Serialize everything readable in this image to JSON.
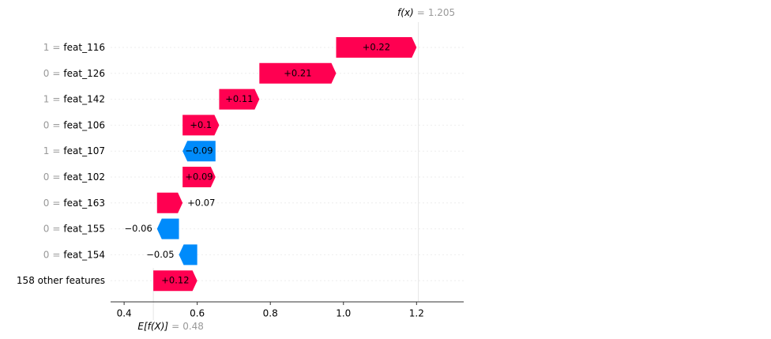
{
  "chart_data": {
    "type": "waterfall",
    "categories": [
      "feat_116",
      "feat_126",
      "feat_142",
      "feat_106",
      "feat_107",
      "feat_102",
      "feat_163",
      "feat_155",
      "feat_154",
      "158 other features"
    ],
    "feature_values": [
      "1",
      "0",
      "1",
      "0",
      "1",
      "0",
      "0",
      "0",
      "0",
      null
    ],
    "eq": "=",
    "values": [
      0.22,
      0.21,
      0.11,
      0.1,
      -0.09,
      0.09,
      0.07,
      -0.06,
      -0.05,
      0.12
    ],
    "value_labels": [
      "+0.22",
      "+0.21",
      "+0.11",
      "+0.1",
      "−0.09",
      "+0.09",
      "+0.07",
      "−0.06",
      "−0.05",
      "+0.12"
    ],
    "positive_color": "#ff0051",
    "negative_color": "#008bfb",
    "fx_label": "f(x)",
    "fx_value": 1.205,
    "base_label": "E[f(X)]",
    "base_value": 0.48,
    "xlim": [
      0.363,
      1.329
    ],
    "xticks": [
      0.4,
      0.6,
      0.8,
      {
        "value": 1,
        "label": "1.0"
      },
      1.2
    ]
  }
}
